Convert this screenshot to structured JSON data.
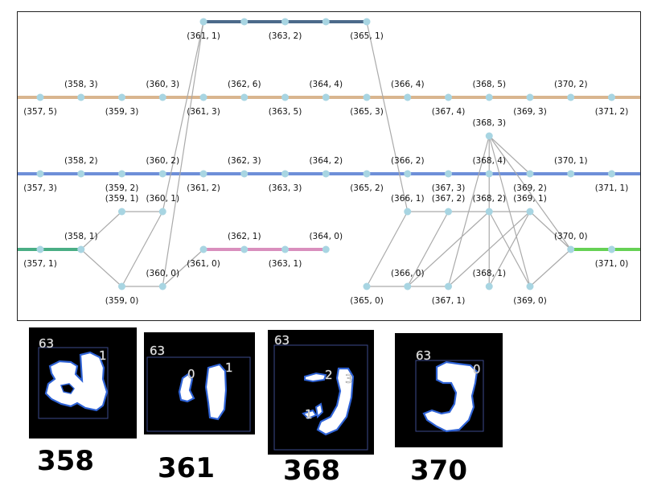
{
  "graph": {
    "lanes": [
      {
        "id": "top",
        "color": "#4c6a8a"
      },
      {
        "id": "orange",
        "color": "#d9b58f"
      },
      {
        "id": "blue",
        "color": "#6e8fd8"
      },
      {
        "id": "green",
        "color": "#4aae85"
      },
      {
        "id": "pink",
        "color": "#d98fbd"
      },
      {
        "id": "lime",
        "color": "#66d155"
      }
    ],
    "node_color": "#a8d5e2",
    "edge_color": "#aaaaaa",
    "nodes": [
      {
        "id": "n361_1",
        "lane": "top",
        "label": "(361, 1)"
      },
      {
        "id": "n362_t",
        "lane": "top",
        "label": ""
      },
      {
        "id": "n363_2",
        "lane": "top",
        "label": "(363, 2)"
      },
      {
        "id": "n364_t",
        "lane": "top",
        "label": ""
      },
      {
        "id": "n365_1",
        "lane": "top",
        "label": "(365, 1)"
      },
      {
        "id": "n357_5",
        "lane": "orange",
        "label": "(357, 5)"
      },
      {
        "id": "n358_3",
        "lane": "orange",
        "label": "(358, 3)"
      },
      {
        "id": "n359_3",
        "lane": "orange",
        "label": "(359, 3)"
      },
      {
        "id": "n360_3",
        "lane": "orange",
        "label": "(360, 3)"
      },
      {
        "id": "n361_3",
        "lane": "orange",
        "label": "(361, 3)"
      },
      {
        "id": "n362_6",
        "lane": "orange",
        "label": "(362, 6)"
      },
      {
        "id": "n363_5",
        "lane": "orange",
        "label": "(363, 5)"
      },
      {
        "id": "n364_4",
        "lane": "orange",
        "label": "(364, 4)"
      },
      {
        "id": "n365_3",
        "lane": "orange",
        "label": "(365, 3)"
      },
      {
        "id": "n366_4",
        "lane": "orange",
        "label": "(366, 4)"
      },
      {
        "id": "n367_4",
        "lane": "orange",
        "label": "(367, 4)"
      },
      {
        "id": "n368_5",
        "lane": "orange",
        "label": "(368, 5)"
      },
      {
        "id": "n369_3",
        "lane": "orange",
        "label": "(369, 3)"
      },
      {
        "id": "n370_2",
        "lane": "orange",
        "label": "(370, 2)"
      },
      {
        "id": "n371_2",
        "lane": "orange",
        "label": "(371, 2)"
      },
      {
        "id": "n368_3",
        "lane": "free",
        "label": "(368, 3)"
      },
      {
        "id": "n357_3",
        "lane": "blue",
        "label": "(357, 3)"
      },
      {
        "id": "n358_2",
        "lane": "blue",
        "label": "(358, 2)"
      },
      {
        "id": "n359_2",
        "lane": "blue",
        "label": "(359, 2)"
      },
      {
        "id": "n360_2",
        "lane": "blue",
        "label": "(360, 2)"
      },
      {
        "id": "n361_2",
        "lane": "blue",
        "label": "(361, 2)"
      },
      {
        "id": "n362_3",
        "lane": "blue",
        "label": "(362, 3)"
      },
      {
        "id": "n363_3",
        "lane": "blue",
        "label": "(363, 3)"
      },
      {
        "id": "n364_2",
        "lane": "blue",
        "label": "(364, 2)"
      },
      {
        "id": "n365_2",
        "lane": "blue",
        "label": "(365, 2)"
      },
      {
        "id": "n366_2",
        "lane": "blue",
        "label": "(366, 2)"
      },
      {
        "id": "n367_3",
        "lane": "blue",
        "label": "(367, 3)"
      },
      {
        "id": "n368_4",
        "lane": "blue",
        "label": "(368, 4)"
      },
      {
        "id": "n369_2",
        "lane": "blue",
        "label": "(369, 2)"
      },
      {
        "id": "n370_1",
        "lane": "blue",
        "label": "(370, 1)"
      },
      {
        "id": "n371_1",
        "lane": "blue",
        "label": "(371, 1)"
      },
      {
        "id": "n359_1",
        "lane": "free",
        "label": "(359, 1)"
      },
      {
        "id": "n360_1",
        "lane": "free",
        "label": "(360, 1)"
      },
      {
        "id": "n366_1",
        "lane": "free",
        "label": "(366, 1)"
      },
      {
        "id": "n367_2",
        "lane": "free",
        "label": "(367, 2)"
      },
      {
        "id": "n368_2",
        "lane": "free",
        "label": "(368, 2)"
      },
      {
        "id": "n369_1",
        "lane": "free",
        "label": "(369, 1)"
      },
      {
        "id": "n357_1",
        "lane": "green",
        "label": "(357, 1)"
      },
      {
        "id": "n358_1",
        "lane": "green",
        "label": "(358, 1)"
      },
      {
        "id": "n361_0",
        "lane": "pink",
        "label": "(361, 0)"
      },
      {
        "id": "n362_1",
        "lane": "pink",
        "label": "(362, 1)"
      },
      {
        "id": "n363_1",
        "lane": "pink",
        "label": "(363, 1)"
      },
      {
        "id": "n364_0",
        "lane": "pink",
        "label": "(364, 0)"
      },
      {
        "id": "n370_0",
        "lane": "lime",
        "label": "(370, 0)"
      },
      {
        "id": "n371_0",
        "lane": "lime",
        "label": "(371, 0)"
      },
      {
        "id": "n359_0",
        "lane": "free",
        "label": "(359, 0)"
      },
      {
        "id": "n360_0",
        "lane": "free",
        "label": "(360, 0)"
      },
      {
        "id": "n365_0",
        "lane": "free",
        "label": "(365, 0)"
      },
      {
        "id": "n366_0",
        "lane": "free",
        "label": "(366, 0)"
      },
      {
        "id": "n367_1",
        "lane": "free",
        "label": "(367, 1)"
      },
      {
        "id": "n368_1",
        "lane": "free",
        "label": "(368, 1)"
      },
      {
        "id": "n369_0",
        "lane": "free",
        "label": "(369, 0)"
      }
    ],
    "edges": [
      [
        "n358_1",
        "n359_1"
      ],
      [
        "n358_1",
        "n359_0"
      ],
      [
        "n359_1",
        "n360_1"
      ],
      [
        "n359_0",
        "n360_1"
      ],
      [
        "n359_0",
        "n360_0"
      ],
      [
        "n360_1",
        "n361_1"
      ],
      [
        "n360_0",
        "n361_1"
      ],
      [
        "n360_0",
        "n361_0"
      ],
      [
        "n365_1",
        "n366_1"
      ],
      [
        "n366_1",
        "n367_2"
      ],
      [
        "n365_0",
        "n366_1"
      ],
      [
        "n365_0",
        "n367_1"
      ],
      [
        "n366_0",
        "n367_2"
      ],
      [
        "n366_0",
        "n368_2"
      ],
      [
        "n367_2",
        "n368_2"
      ],
      [
        "n367_1",
        "n368_3"
      ],
      [
        "n367_1",
        "n369_1"
      ],
      [
        "n368_2",
        "n369_1"
      ],
      [
        "n368_2",
        "n369_0"
      ],
      [
        "n368_3",
        "n369_2"
      ],
      [
        "n368_3",
        "n369_0"
      ],
      [
        "n368_3",
        "n370_0"
      ],
      [
        "n368_1",
        "n368_3"
      ],
      [
        "n368_1",
        "n369_1"
      ],
      [
        "n369_1",
        "n370_0"
      ],
      [
        "n369_0",
        "n370_0"
      ]
    ]
  },
  "frames": [
    {
      "label": "358",
      "segments": [
        {
          "id": "63",
          "label": "63"
        },
        {
          "id": "1",
          "label": "1"
        }
      ]
    },
    {
      "label": "361",
      "segments": [
        {
          "id": "63",
          "label": "63"
        },
        {
          "id": "0",
          "label": "0"
        },
        {
          "id": "1",
          "label": "1"
        }
      ]
    },
    {
      "label": "368",
      "segments": [
        {
          "id": "63",
          "label": "63"
        },
        {
          "id": "2",
          "label": "2"
        },
        {
          "id": "3",
          "label": "3"
        },
        {
          "id": "1",
          "label": "1"
        }
      ]
    },
    {
      "label": "370",
      "segments": [
        {
          "id": "63",
          "label": "63"
        },
        {
          "id": "0",
          "label": "0"
        }
      ]
    }
  ]
}
